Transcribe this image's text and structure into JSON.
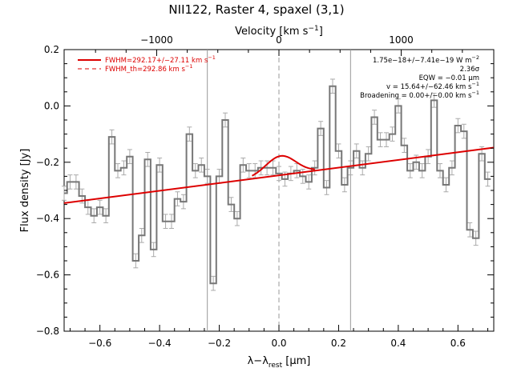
{
  "chart_data": {
    "type": "line",
    "title": "NII122, Raster 4, spaxel (3,1)",
    "xlabel": "λ−λ",
    "xlabel_sub": "rest",
    "xlabel_unit": " [μm]",
    "ylabel": "Flux density [Jy]",
    "top_axis": {
      "label": "Velocity [km s",
      "label_sup": "−1",
      "label_end": "]",
      "ticks": [
        -1000,
        0,
        1000
      ],
      "tick_labels": [
        "−1000",
        "0",
        "1000"
      ],
      "km_s_per_um": 2440
    },
    "xlim": [
      -0.72,
      0.72
    ],
    "ylim": [
      -0.8,
      0.2
    ],
    "x_ticks": [
      -0.6,
      -0.4,
      -0.2,
      0.0,
      0.2,
      0.4,
      0.6
    ],
    "x_tick_labels": [
      "−0.6",
      "−0.4",
      "−0.2",
      "0.0",
      "0.2",
      "0.4",
      "0.6"
    ],
    "y_ticks": [
      -0.8,
      -0.6,
      -0.4,
      -0.2,
      0.0,
      0.2
    ],
    "y_tick_labels": [
      "−0.8",
      "−0.6",
      "−0.4",
      "−0.2",
      "0.0",
      "0.2"
    ],
    "vertical_lines": [
      -0.24,
      0.0,
      0.24
    ],
    "legend": [
      {
        "text_main": "FWHM=292.17+/−27.11 km s",
        "text_sup": "−1",
        "color": "#dd0000",
        "style": "solid"
      },
      {
        "text_main": "FWHM_th=292.86 km s",
        "text_sup": "−1",
        "color": "#dd0000",
        "style": "dashed"
      }
    ],
    "annotations": [
      {
        "main": "1.75e−18+/−7.41e−19 W m",
        "sup": "−2"
      },
      {
        "main": "2.36σ",
        "sup": ""
      },
      {
        "main": "EQW = −0.01 μm",
        "sup": ""
      },
      {
        "main": "v = 15.64+/−62.46 km s",
        "sup": "−1"
      },
      {
        "main": "Broadening = 0.00+/−0.00 km s",
        "sup": "−1"
      }
    ],
    "continuum": {
      "x": [
        -0.72,
        0.72
      ],
      "y": [
        -0.345,
        -0.148
      ]
    },
    "gaussian": {
      "center": 0.006,
      "sigma": 0.05,
      "amplitude": 0.068,
      "x_range": [
        -0.09,
        0.12
      ]
    },
    "spectrum": {
      "x": [
        -0.72,
        -0.7,
        -0.68,
        -0.66,
        -0.64,
        -0.62,
        -0.6,
        -0.58,
        -0.56,
        -0.54,
        -0.52,
        -0.5,
        -0.48,
        -0.46,
        -0.44,
        -0.42,
        -0.4,
        -0.38,
        -0.36,
        -0.34,
        -0.32,
        -0.3,
        -0.28,
        -0.26,
        -0.24,
        -0.22,
        -0.2,
        -0.18,
        -0.16,
        -0.14,
        -0.12,
        -0.1,
        -0.08,
        -0.06,
        -0.04,
        -0.02,
        0.0,
        0.02,
        0.04,
        0.06,
        0.08,
        0.1,
        0.12,
        0.14,
        0.16,
        0.18,
        0.2,
        0.22,
        0.24,
        0.26,
        0.28,
        0.3,
        0.32,
        0.34,
        0.36,
        0.38,
        0.4,
        0.42,
        0.44,
        0.46,
        0.48,
        0.5,
        0.52,
        0.54,
        0.56,
        0.58,
        0.6,
        0.62,
        0.64,
        0.66,
        0.68,
        0.7
      ],
      "y": [
        -0.31,
        -0.27,
        -0.27,
        -0.32,
        -0.36,
        -0.39,
        -0.36,
        -0.39,
        -0.11,
        -0.23,
        -0.22,
        -0.18,
        -0.55,
        -0.46,
        -0.19,
        -0.51,
        -0.21,
        -0.41,
        -0.41,
        -0.33,
        -0.34,
        -0.1,
        -0.23,
        -0.21,
        -0.25,
        -0.63,
        -0.25,
        -0.05,
        -0.35,
        -0.4,
        -0.21,
        -0.23,
        -0.23,
        -0.22,
        -0.22,
        -0.22,
        -0.24,
        -0.26,
        -0.24,
        -0.23,
        -0.25,
        -0.27,
        -0.22,
        -0.08,
        -0.29,
        0.07,
        -0.16,
        -0.28,
        -0.22,
        -0.16,
        -0.22,
        -0.17,
        -0.04,
        -0.12,
        -0.12,
        -0.1,
        0.0,
        -0.14,
        -0.23,
        -0.2,
        -0.23,
        -0.18,
        0.02,
        -0.23,
        -0.28,
        -0.22,
        -0.07,
        -0.09,
        -0.44,
        -0.47,
        -0.17,
        -0.26
      ],
      "err": 0.025
    }
  }
}
